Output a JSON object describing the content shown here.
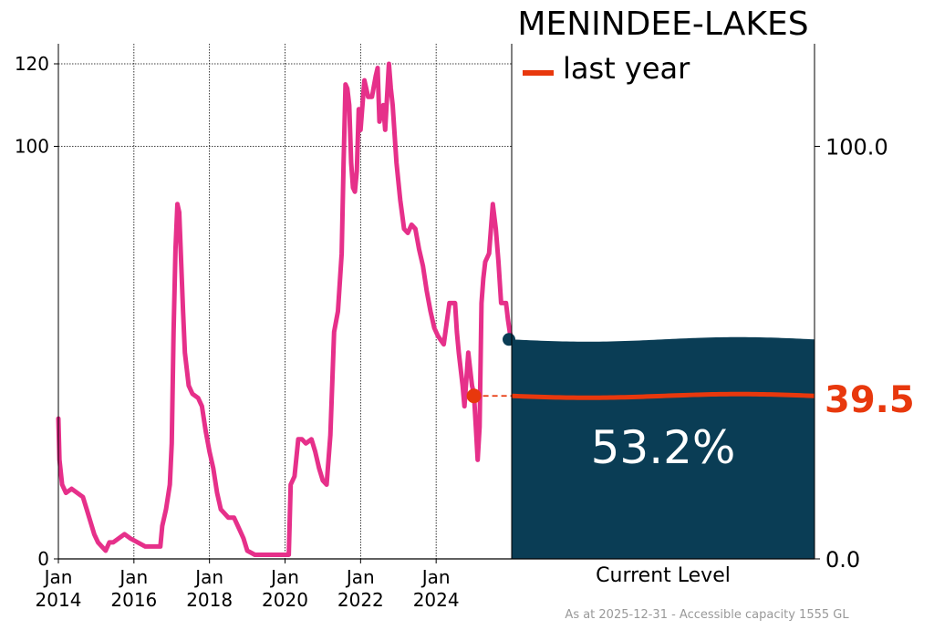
{
  "chart_data": {
    "type": "line",
    "title": "MENINDEE-LAKES",
    "legend": [
      {
        "label": "last year",
        "color": "#e8380d"
      }
    ],
    "legend_placement": "top-left of gauge",
    "x_ticks": [
      {
        "month": "Jan",
        "year": "2014",
        "t": 2014.0
      },
      {
        "month": "Jan",
        "year": "2016",
        "t": 2016.0
      },
      {
        "month": "Jan",
        "year": "2018",
        "t": 2018.0
      },
      {
        "month": "Jan",
        "year": "2020",
        "t": 2020.0
      },
      {
        "month": "Jan",
        "year": "2022",
        "t": 2022.0
      },
      {
        "month": "Jan",
        "year": "2024",
        "t": 2024.0
      }
    ],
    "xlim": [
      2014.0,
      2026.0
    ],
    "ylim": [
      0,
      120
    ],
    "y_ticks_left": [
      "0",
      "100",
      "120"
    ],
    "y_ticks_right": [
      "0.0",
      "100.0"
    ],
    "grid": true,
    "series": [
      {
        "color": "#e6308a",
        "points": [
          [
            2014.0,
            34
          ],
          [
            2014.03,
            24
          ],
          [
            2014.1,
            18
          ],
          [
            2014.2,
            16
          ],
          [
            2014.35,
            17
          ],
          [
            2014.5,
            16
          ],
          [
            2014.65,
            15
          ],
          [
            2014.75,
            12
          ],
          [
            2014.85,
            9
          ],
          [
            2014.95,
            6
          ],
          [
            2015.05,
            4
          ],
          [
            2015.15,
            3
          ],
          [
            2015.25,
            2
          ],
          [
            2015.35,
            4
          ],
          [
            2015.45,
            4
          ],
          [
            2015.6,
            5
          ],
          [
            2015.75,
            6
          ],
          [
            2015.9,
            5
          ],
          [
            2016.1,
            4
          ],
          [
            2016.3,
            3
          ],
          [
            2016.5,
            3
          ],
          [
            2016.7,
            3
          ],
          [
            2016.75,
            8
          ],
          [
            2016.85,
            12
          ],
          [
            2016.95,
            18
          ],
          [
            2017.0,
            28
          ],
          [
            2017.05,
            55
          ],
          [
            2017.1,
            75
          ],
          [
            2017.15,
            86
          ],
          [
            2017.2,
            84
          ],
          [
            2017.25,
            72
          ],
          [
            2017.3,
            60
          ],
          [
            2017.35,
            50
          ],
          [
            2017.45,
            42
          ],
          [
            2017.55,
            40
          ],
          [
            2017.7,
            39
          ],
          [
            2017.8,
            37
          ],
          [
            2017.9,
            31
          ],
          [
            2018.0,
            26
          ],
          [
            2018.1,
            22
          ],
          [
            2018.2,
            16
          ],
          [
            2018.3,
            12
          ],
          [
            2018.4,
            11
          ],
          [
            2018.5,
            10
          ],
          [
            2018.65,
            10
          ],
          [
            2018.8,
            7
          ],
          [
            2018.9,
            5
          ],
          [
            2019.0,
            2
          ],
          [
            2019.2,
            1
          ],
          [
            2019.5,
            1
          ],
          [
            2019.8,
            1
          ],
          [
            2020.0,
            1
          ],
          [
            2020.1,
            1
          ],
          [
            2020.15,
            18
          ],
          [
            2020.25,
            20
          ],
          [
            2020.35,
            29
          ],
          [
            2020.45,
            29
          ],
          [
            2020.55,
            28
          ],
          [
            2020.7,
            29
          ],
          [
            2020.8,
            26
          ],
          [
            2020.9,
            22
          ],
          [
            2021.0,
            19
          ],
          [
            2021.1,
            18
          ],
          [
            2021.2,
            30
          ],
          [
            2021.3,
            55
          ],
          [
            2021.4,
            60
          ],
          [
            2021.5,
            74
          ],
          [
            2021.55,
            96
          ],
          [
            2021.6,
            115
          ],
          [
            2021.65,
            114
          ],
          [
            2021.7,
            110
          ],
          [
            2021.75,
            96
          ],
          [
            2021.8,
            90
          ],
          [
            2021.85,
            89
          ],
          [
            2021.9,
            94
          ],
          [
            2021.95,
            109
          ],
          [
            2022.0,
            104
          ],
          [
            2022.1,
            116
          ],
          [
            2022.2,
            112
          ],
          [
            2022.3,
            112
          ],
          [
            2022.4,
            117
          ],
          [
            2022.45,
            119
          ],
          [
            2022.5,
            106
          ],
          [
            2022.55,
            108
          ],
          [
            2022.6,
            110
          ],
          [
            2022.65,
            104
          ],
          [
            2022.75,
            120
          ],
          [
            2022.8,
            114
          ],
          [
            2022.85,
            110
          ],
          [
            2022.95,
            96
          ],
          [
            2023.05,
            87
          ],
          [
            2023.15,
            80
          ],
          [
            2023.25,
            79
          ],
          [
            2023.35,
            81
          ],
          [
            2023.45,
            80
          ],
          [
            2023.55,
            75
          ],
          [
            2023.65,
            71
          ],
          [
            2023.75,
            65
          ],
          [
            2023.85,
            60
          ],
          [
            2023.95,
            56
          ],
          [
            2024.05,
            54
          ],
          [
            2024.2,
            52
          ],
          [
            2024.35,
            62
          ],
          [
            2024.5,
            62
          ],
          [
            2024.55,
            55
          ],
          [
            2024.6,
            50
          ],
          [
            2024.7,
            42
          ],
          [
            2024.75,
            37
          ],
          [
            2024.85,
            50
          ],
          [
            2024.95,
            42
          ],
          [
            2025.0,
            40
          ],
          [
            2025.05,
            32
          ],
          [
            2025.1,
            24
          ],
          [
            2025.15,
            32
          ],
          [
            2025.2,
            62
          ],
          [
            2025.25,
            68
          ],
          [
            2025.3,
            72
          ],
          [
            2025.4,
            74
          ],
          [
            2025.5,
            86
          ],
          [
            2025.58,
            80
          ],
          [
            2025.65,
            72
          ],
          [
            2025.72,
            62
          ],
          [
            2025.78,
            62
          ],
          [
            2025.85,
            62
          ],
          [
            2025.9,
            58
          ],
          [
            2025.95,
            55
          ],
          [
            2026.0,
            53.2
          ]
        ]
      }
    ],
    "last_year_marker": {
      "x": 2025.0,
      "y": 39.5,
      "color": "#e8380d"
    },
    "current_level": {
      "percent": 53.2,
      "label_text": "53.2%",
      "gauge_label": "Current Level",
      "fill_color": "#0a3d55"
    },
    "last_year_value": 39.5,
    "last_year_text": "39.5",
    "footer": "As at 2025-12-31 - Accessible capacity 1555 GL"
  }
}
